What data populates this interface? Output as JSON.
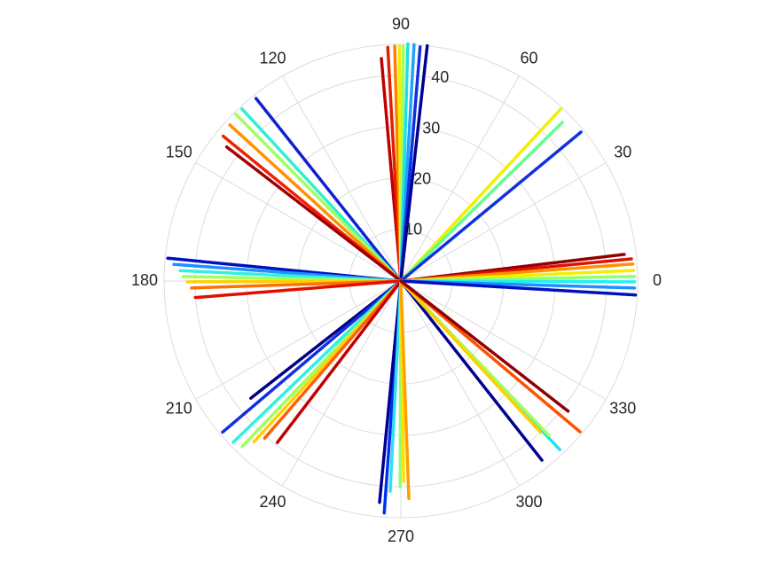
{
  "chart_data": {
    "type": "polar",
    "rlim": [
      0,
      46
    ],
    "rticks": [
      10,
      20,
      30,
      40
    ],
    "thetaticks": [
      0,
      30,
      60,
      90,
      120,
      150,
      180,
      210,
      240,
      270,
      300,
      330
    ],
    "grid": true,
    "series": [
      {
        "color": "#c00000",
        "theta": 95.0,
        "r": 43.4
      },
      {
        "color": "#e02000",
        "theta": 93.2,
        "r": 45.5
      },
      {
        "color": "#ff8000",
        "theta": 91.5,
        "r": 45.8
      },
      {
        "color": "#f0f000",
        "theta": 90.4,
        "r": 45.8
      },
      {
        "color": "#a0ff60",
        "theta": 89.4,
        "r": 45.8
      },
      {
        "color": "#20e0e0",
        "theta": 88.3,
        "r": 46.1
      },
      {
        "color": "#20a0ff",
        "theta": 86.8,
        "r": 46.0
      },
      {
        "color": "#1030e0",
        "theta": 85.3,
        "r": 45.9
      },
      {
        "color": "#000090",
        "theta": 83.6,
        "r": 46.0
      },
      {
        "color": "#f0f000",
        "theta": 47.1,
        "r": 45.6
      },
      {
        "color": "#60ff90",
        "theta": 44.5,
        "r": 44.0
      },
      {
        "color": "#1030e0",
        "theta": 39.6,
        "r": 45.4
      },
      {
        "color": "#900000",
        "theta": 6.8,
        "r": 43.7
      },
      {
        "color": "#e01000",
        "theta": 5.5,
        "r": 45.0
      },
      {
        "color": "#ff9000",
        "theta": 4.2,
        "r": 45.2
      },
      {
        "color": "#f0f000",
        "theta": 2.6,
        "r": 45.3
      },
      {
        "color": "#90ff70",
        "theta": 1.1,
        "r": 45.4
      },
      {
        "color": "#20f0f0",
        "theta": 359.8,
        "r": 45.4
      },
      {
        "color": "#2090ff",
        "theta": 358.3,
        "r": 45.4
      },
      {
        "color": "#0010c0",
        "theta": 356.6,
        "r": 45.8
      },
      {
        "color": "#1020d0",
        "theta": 128.4,
        "r": 45.3
      },
      {
        "color": "#30f0d0",
        "theta": 132.7,
        "r": 45.5
      },
      {
        "color": "#a0ff60",
        "theta": 134.7,
        "r": 45.6
      },
      {
        "color": "#ff9000",
        "theta": 137.6,
        "r": 45.0
      },
      {
        "color": "#f02000",
        "theta": 140.8,
        "r": 44.7
      },
      {
        "color": "#a00000",
        "theta": 142.4,
        "r": 42.7
      },
      {
        "color": "#0010c0",
        "theta": 174.4,
        "r": 45.5
      },
      {
        "color": "#2090ff",
        "theta": 175.8,
        "r": 44.2
      },
      {
        "color": "#30f0e0",
        "theta": 177.3,
        "r": 42.9
      },
      {
        "color": "#a0ff60",
        "theta": 178.8,
        "r": 42.4
      },
      {
        "color": "#ffd000",
        "theta": 180.2,
        "r": 41.5
      },
      {
        "color": "#ff7000",
        "theta": 181.9,
        "r": 40.7
      },
      {
        "color": "#e01000",
        "theta": 184.6,
        "r": 40.3
      },
      {
        "color": "#000080",
        "theta": 218.0,
        "r": 37.0
      },
      {
        "color": "#1030e0",
        "theta": 220.3,
        "r": 45.4
      },
      {
        "color": "#30f0e0",
        "theta": 223.9,
        "r": 45.2
      },
      {
        "color": "#a0ff60",
        "theta": 226.2,
        "r": 44.6
      },
      {
        "color": "#ffd000",
        "theta": 227.6,
        "r": 42.5
      },
      {
        "color": "#ff6000",
        "theta": 229.1,
        "r": 40.4
      },
      {
        "color": "#c00000",
        "theta": 232.6,
        "r": 39.5
      },
      {
        "color": "#0030f0",
        "theta": 265.9,
        "r": 45.2
      },
      {
        "color": "#000090",
        "theta": 264.5,
        "r": 43.2
      },
      {
        "color": "#30e0f0",
        "theta": 267.1,
        "r": 40.9
      },
      {
        "color": "#90ff70",
        "theta": 269.8,
        "r": 40.0
      },
      {
        "color": "#ffe000",
        "theta": 270.8,
        "r": 39.1
      },
      {
        "color": "#ffa000",
        "theta": 272.1,
        "r": 42.5
      },
      {
        "color": "#000090",
        "theta": 308.2,
        "r": 44.3
      },
      {
        "color": "#20e0f0",
        "theta": 313.3,
        "r": 45.0
      },
      {
        "color": "#a0ff60",
        "theta": 313.8,
        "r": 41.6
      },
      {
        "color": "#ffd000",
        "theta": 312.7,
        "r": 40.0
      },
      {
        "color": "#ff5000",
        "theta": 319.9,
        "r": 45.5
      },
      {
        "color": "#900000",
        "theta": 322.1,
        "r": 41.3
      }
    ]
  }
}
